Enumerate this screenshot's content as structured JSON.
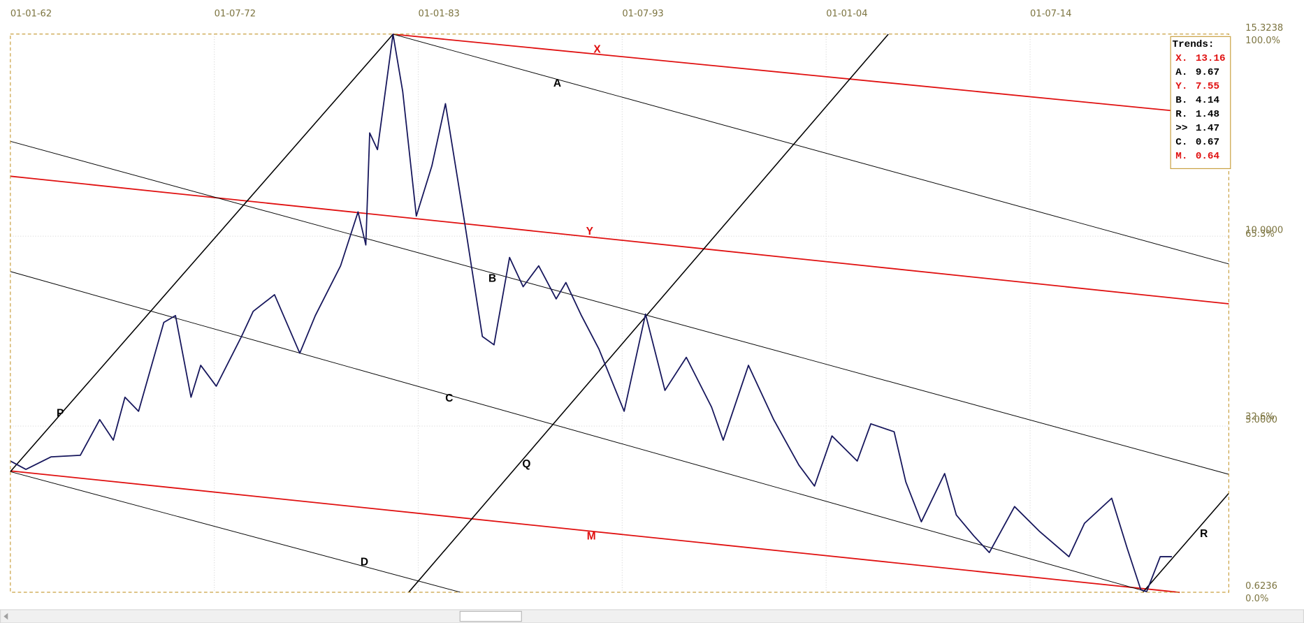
{
  "chart_data": {
    "type": "line",
    "xlim": [
      1962,
      2024.73
    ],
    "xticks": [
      {
        "value": 1962,
        "label": "01-01-62"
      },
      {
        "value": 1972.5,
        "label": "01-07-72"
      },
      {
        "value": 1983,
        "label": "01-01-83"
      },
      {
        "value": 1993.5,
        "label": "01-07-93"
      },
      {
        "value": 2004,
        "label": "01-01-04"
      },
      {
        "value": 2014.5,
        "label": "01-07-14"
      }
    ],
    "ylim": [
      0.6236,
      15.3238
    ],
    "yticks": [
      0.6236,
      {
        "value": 5,
        "label": "5.0000"
      },
      {
        "value": 10,
        "label": "10.0000"
      },
      15.3238
    ],
    "y2lim": [
      0,
      100
    ],
    "y2ticks": [
      {
        "value": 0,
        "label": "0.0%"
      },
      {
        "value": 32.6,
        "label": "32.6%"
      },
      {
        "value": 65.3,
        "label": "65.3%"
      },
      {
        "value": 100,
        "label": "100.0%"
      }
    ],
    "grid": true,
    "price": {
      "color": "#16165c",
      "x": [
        1962.0,
        1962.8,
        1964.1,
        1965.6,
        1966.6,
        1967.3,
        1967.9,
        1968.6,
        1969.9,
        1970.5,
        1971.3,
        1971.8,
        1972.6,
        1973.9,
        1974.5,
        1975.6,
        1976.9,
        1977.7,
        1979.0,
        1979.9,
        1980.3,
        1980.5,
        1980.9,
        1981.7,
        1982.2,
        1982.9,
        1983.7,
        1984.4,
        1985.4,
        1986.3,
        1986.9,
        1987.7,
        1988.4,
        1989.2,
        1990.1,
        1990.6,
        1991.4,
        1992.3,
        1993.6,
        1994.7,
        1995.7,
        1996.8,
        1998.1,
        1998.7,
        2000.0,
        2001.3,
        2002.6,
        2003.4,
        2004.3,
        2005.6,
        2006.3,
        2007.5,
        2008.1,
        2008.9,
        2010.1,
        2010.7,
        2011.6,
        2012.4,
        2013.7,
        2015.0,
        2016.5,
        2017.3,
        2018.7,
        2019.5,
        2020.2,
        2020.5,
        2021.2,
        2021.8
      ],
      "values": [
        4.08,
        3.86,
        4.19,
        4.23,
        5.17,
        4.63,
        5.76,
        5.39,
        7.73,
        7.91,
        5.76,
        6.6,
        6.05,
        7.36,
        8.02,
        8.46,
        6.92,
        7.91,
        9.22,
        10.64,
        9.77,
        12.72,
        12.28,
        15.32,
        13.81,
        10.53,
        11.85,
        13.49,
        10.32,
        7.36,
        7.14,
        9.44,
        8.67,
        9.22,
        8.35,
        8.78,
        7.91,
        7.03,
        5.39,
        7.95,
        5.94,
        6.81,
        5.5,
        4.63,
        6.6,
        5.17,
        3.97,
        3.42,
        4.74,
        4.08,
        5.06,
        4.85,
        3.53,
        2.48,
        3.75,
        2.66,
        2.11,
        1.67,
        2.88,
        2.22,
        1.56,
        2.44,
        3.1,
        1.78,
        0.69,
        0.64,
        1.56,
        1.56
      ]
    },
    "trendlines": [
      {
        "name": "X",
        "color": "#e01010",
        "x": [
          1981.7,
          2024.73
        ],
        "values": [
          15.32,
          13.16
        ]
      },
      {
        "name": "Y",
        "color": "#e01010",
        "x": [
          1962,
          2024.73
        ],
        "values": [
          11.58,
          8.22
        ]
      },
      {
        "name": "M",
        "color": "#e01010",
        "x": [
          1962,
          2022.2
        ],
        "values": [
          3.82,
          0.62
        ]
      },
      {
        "name": "A",
        "color": "#000000",
        "x": [
          1981.7,
          2024.73
        ],
        "values": [
          15.32,
          9.27
        ]
      },
      {
        "name": "B",
        "color": "#000000",
        "x": [
          1962,
          2024.73
        ],
        "values": [
          12.5,
          3.73
        ]
      },
      {
        "name": "C",
        "color": "#000000",
        "x": [
          1962,
          2020.5
        ],
        "values": [
          9.07,
          0.64
        ]
      },
      {
        "name": "D",
        "color": "#000000",
        "x": [
          1962,
          1985.2
        ],
        "values": [
          3.8,
          0.62
        ]
      },
      {
        "name": "P",
        "color": "#000000",
        "x": [
          1962,
          1981.7
        ],
        "values": [
          3.8,
          15.32
        ]
      },
      {
        "name": "Q",
        "color": "#000000",
        "x": [
          1982.5,
          2007.2
        ],
        "values": [
          0.62,
          15.32
        ]
      },
      {
        "name": "R",
        "color": "#000000",
        "x": [
          2020.3,
          2024.73
        ],
        "values": [
          0.62,
          3.23
        ]
      }
    ],
    "legend_title": "Trends:",
    "legend": [
      {
        "label": "X.",
        "value": 13.16,
        "color": "#e01010"
      },
      {
        "label": "A.",
        "value": 9.67,
        "color": "#000000"
      },
      {
        "label": "Y.",
        "value": 7.55,
        "color": "#e01010"
      },
      {
        "label": "B.",
        "value": 4.14,
        "color": "#000000"
      },
      {
        "label": "R.",
        "value": 1.48,
        "color": "#000000"
      },
      {
        "label": ">>",
        "value": 1.47,
        "color": "#000000"
      },
      {
        "label": "C.",
        "value": 0.67,
        "color": "#000000"
      },
      {
        "label": "M.",
        "value": 0.64,
        "color": "#e01010"
      }
    ]
  }
}
